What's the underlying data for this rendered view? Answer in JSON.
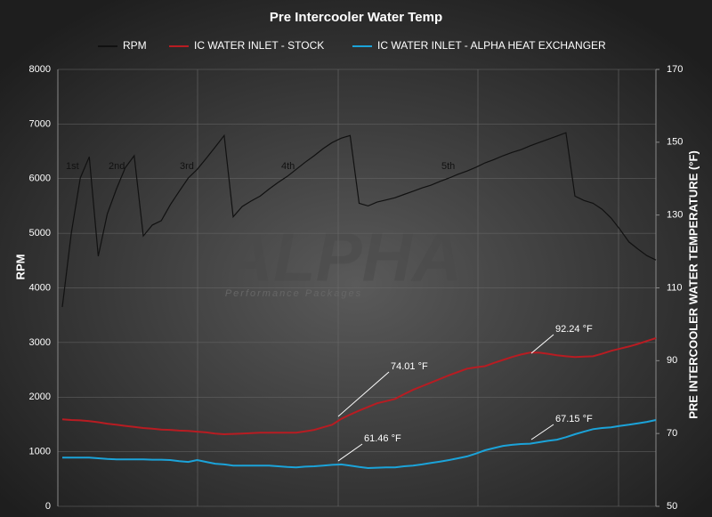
{
  "chart_data": {
    "type": "line",
    "title": "Pre Intercooler Water Temp",
    "y_label": "RPM",
    "y2_label": "PRE INTERCOOLER WATER TEMPERATURE (°F)",
    "ylim": [
      0,
      8000
    ],
    "yticks": [
      0,
      1000,
      2000,
      3000,
      4000,
      5000,
      6000,
      7000,
      8000
    ],
    "y2lim": [
      50,
      170
    ],
    "y2ticks": [
      50,
      70,
      90,
      110,
      130,
      150,
      170
    ],
    "grid": true,
    "legend": "top",
    "watermark": "ALPHA",
    "watermark_sub": "Performance Packages",
    "gear_labels": [
      "1st",
      "2nd",
      "3rd",
      "4th",
      "5th"
    ],
    "callouts": [
      "92.24 °F",
      "74.01 °F",
      "61.46 °F",
      "67.15 °F"
    ],
    "series": [
      {
        "name": "RPM",
        "color": "#111111",
        "axis": "y",
        "values": [
          3650,
          5000,
          6010,
          6400,
          4580,
          5350,
          5800,
          6200,
          6420,
          4950,
          5150,
          5230,
          5520,
          5770,
          6010,
          6170,
          6370,
          6580,
          6790,
          5300,
          5490,
          5590,
          5680,
          5810,
          5930,
          6040,
          6170,
          6300,
          6420,
          6550,
          6660,
          6740,
          6790,
          5550,
          5500,
          5570,
          5610,
          5650,
          5710,
          5770,
          5830,
          5880,
          5950,
          6010,
          6080,
          6140,
          6210,
          6290,
          6350,
          6420,
          6480,
          6530,
          6600,
          6660,
          6720,
          6780,
          6840,
          5680,
          5600,
          5550,
          5440,
          5280,
          5070,
          4840,
          4710,
          4590,
          4510
        ]
      },
      {
        "name": "IC WATER INLET - STOCK",
        "color": "#b81c22",
        "axis": "y2",
        "values": [
          73.9,
          73.7,
          73.6,
          73.4,
          73.1,
          72.7,
          72.4,
          72.1,
          71.8,
          71.5,
          71.3,
          71.1,
          71.0,
          70.8,
          70.7,
          70.5,
          70.3,
          70.0,
          69.8,
          69.9,
          70.0,
          70.1,
          70.2,
          70.2,
          70.2,
          70.2,
          70.2,
          70.6,
          71.0,
          71.7,
          72.4,
          74.0,
          75.2,
          76.3,
          77.3,
          78.3,
          78.9,
          79.5,
          80.8,
          82.0,
          83.0,
          84.0,
          85.0,
          86.0,
          86.9,
          87.8,
          88.2,
          88.5,
          89.4,
          90.2,
          91.0,
          91.7,
          92.2,
          92.2,
          91.9,
          91.5,
          91.2,
          91.0,
          91.1,
          91.2,
          91.9,
          92.7,
          93.3,
          93.9,
          94.6,
          95.4,
          96.2
        ]
      },
      {
        "name": "IC WATER INLET - ALPHA HEAT EXCHANGER",
        "color": "#1ba3d9",
        "axis": "y2",
        "values": [
          63.4,
          63.4,
          63.4,
          63.4,
          63.2,
          63.0,
          62.9,
          62.9,
          62.9,
          62.9,
          62.8,
          62.8,
          62.7,
          62.4,
          62.2,
          62.7,
          62.2,
          61.7,
          61.5,
          61.2,
          61.2,
          61.2,
          61.2,
          61.2,
          61.0,
          60.8,
          60.7,
          60.9,
          61.0,
          61.2,
          61.4,
          61.5,
          61.2,
          60.8,
          60.5,
          60.6,
          60.7,
          60.7,
          61.0,
          61.2,
          61.5,
          61.9,
          62.3,
          62.7,
          63.2,
          63.7,
          64.5,
          65.4,
          66.0,
          66.6,
          66.9,
          67.1,
          67.2,
          67.6,
          68.0,
          68.3,
          69.0,
          69.8,
          70.5,
          71.2,
          71.5,
          71.7,
          72.1,
          72.4,
          72.8,
          73.2,
          73.7
        ]
      }
    ]
  }
}
